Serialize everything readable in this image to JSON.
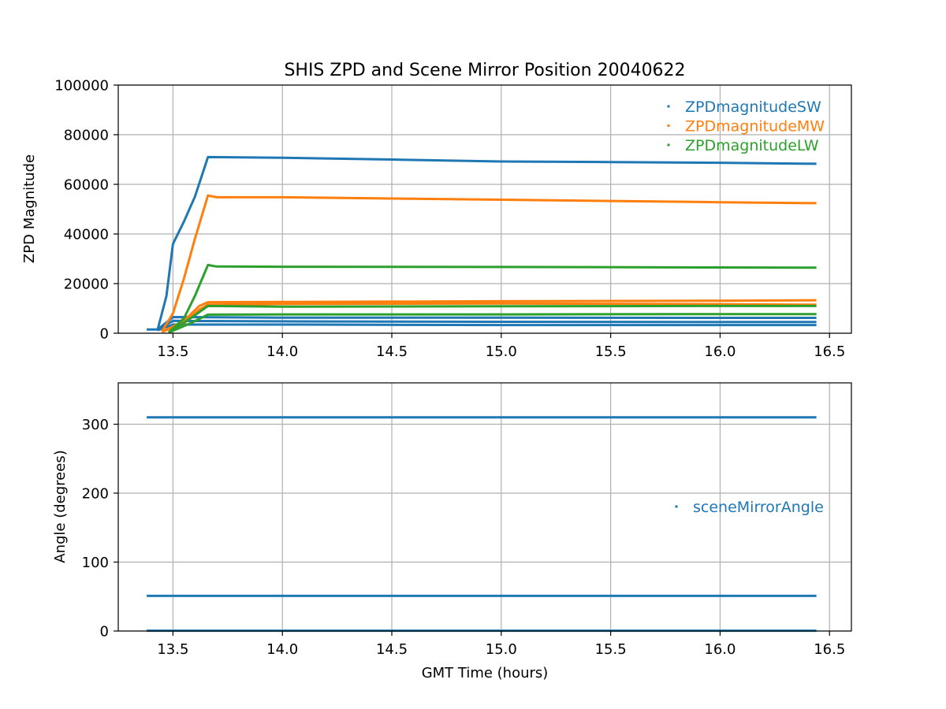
{
  "chart_data": [
    {
      "type": "scatter",
      "title": "SHIS ZPD and Scene Mirror Position 20040622",
      "xlabel": "",
      "ylabel": "ZPD Magnitude",
      "xlim": [
        13.25,
        16.6
      ],
      "ylim": [
        0,
        100000
      ],
      "xticks": [
        "13.5",
        "14.0",
        "14.5",
        "15.0",
        "15.5",
        "16.0",
        "16.5"
      ],
      "yticks": [
        "0",
        "20000",
        "40000",
        "60000",
        "80000",
        "100000"
      ],
      "grid": true,
      "legend_position": "top-right",
      "series": [
        {
          "name": "ZPDmagnitudeSW",
          "color": "#1f77b4",
          "traces": [
            [
              [
                13.38,
                1500
              ],
              [
                13.43,
                1500
              ],
              [
                13.47,
                15000
              ],
              [
                13.5,
                36000
              ],
              [
                13.55,
                45000
              ],
              [
                13.6,
                55000
              ],
              [
                13.66,
                71000
              ],
              [
                14.0,
                70700
              ],
              [
                14.5,
                70000
              ],
              [
                15.0,
                69200
              ],
              [
                15.5,
                69000
              ],
              [
                16.0,
                68700
              ],
              [
                16.44,
                68300
              ]
            ],
            [
              [
                13.43,
                1500
              ],
              [
                13.5,
                6500
              ],
              [
                14.0,
                6300
              ],
              [
                15.0,
                6300
              ],
              [
                16.0,
                6200
              ],
              [
                16.44,
                6200
              ]
            ],
            [
              [
                13.43,
                1500
              ],
              [
                13.5,
                5000
              ],
              [
                14.0,
                4800
              ],
              [
                15.0,
                4600
              ],
              [
                16.0,
                4500
              ],
              [
                16.44,
                4500
              ]
            ],
            [
              [
                13.43,
                1200
              ],
              [
                13.5,
                3500
              ],
              [
                14.0,
                3500
              ],
              [
                15.0,
                3300
              ],
              [
                16.0,
                3300
              ],
              [
                16.44,
                3300
              ]
            ]
          ]
        },
        {
          "name": "ZPDmagnitudeMW",
          "color": "#ff7f0e",
          "traces": [
            [
              [
                13.45,
                800
              ],
              [
                13.5,
                8000
              ],
              [
                13.55,
                22000
              ],
              [
                13.6,
                38000
              ],
              [
                13.66,
                55500
              ],
              [
                13.7,
                54800
              ],
              [
                14.0,
                54800
              ],
              [
                14.5,
                54300
              ],
              [
                15.0,
                53800
              ],
              [
                15.5,
                53300
              ],
              [
                16.0,
                52800
              ],
              [
                16.44,
                52400
              ]
            ],
            [
              [
                13.45,
                500
              ],
              [
                13.55,
                5000
              ],
              [
                13.62,
                11000
              ],
              [
                13.66,
                12500
              ],
              [
                14.0,
                12600
              ],
              [
                15.0,
                12900
              ],
              [
                16.0,
                13100
              ],
              [
                16.44,
                13300
              ]
            ],
            [
              [
                13.45,
                500
              ],
              [
                13.55,
                4000
              ],
              [
                13.62,
                9500
              ],
              [
                13.66,
                11500
              ],
              [
                14.0,
                11800
              ],
              [
                15.0,
                12000
              ],
              [
                16.0,
                11700
              ],
              [
                16.44,
                11500
              ]
            ]
          ]
        },
        {
          "name": "ZPDmagnitudeLW",
          "color": "#2ca02c",
          "traces": [
            [
              [
                13.48,
                300
              ],
              [
                13.55,
                6000
              ],
              [
                13.6,
                15000
              ],
              [
                13.66,
                27500
              ],
              [
                13.7,
                26900
              ],
              [
                14.0,
                26800
              ],
              [
                15.0,
                26700
              ],
              [
                16.0,
                26500
              ],
              [
                16.44,
                26400
              ]
            ],
            [
              [
                13.48,
                300
              ],
              [
                13.58,
                6000
              ],
              [
                13.66,
                11000
              ],
              [
                14.0,
                10700
              ],
              [
                15.0,
                10900
              ],
              [
                16.0,
                11000
              ],
              [
                16.44,
                11000
              ]
            ],
            [
              [
                13.48,
                300
              ],
              [
                13.58,
                4000
              ],
              [
                13.66,
                7500
              ],
              [
                14.0,
                7600
              ],
              [
                15.0,
                7600
              ],
              [
                16.0,
                7700
              ],
              [
                16.44,
                7700
              ]
            ]
          ]
        }
      ]
    },
    {
      "type": "scatter",
      "title": "",
      "xlabel": "GMT Time (hours)",
      "ylabel": "Angle (degrees)",
      "xlim": [
        13.25,
        16.6
      ],
      "ylim": [
        0,
        360
      ],
      "xticks": [
        "13.5",
        "14.0",
        "14.5",
        "15.0",
        "15.5",
        "16.0",
        "16.5"
      ],
      "yticks": [
        "0",
        "100",
        "200",
        "300"
      ],
      "grid": true,
      "legend_position": "center-right",
      "series": [
        {
          "name": "sceneMirrorAngle",
          "color": "#1f77b4",
          "traces": [
            [
              [
                13.38,
                310
              ],
              [
                16.44,
                310
              ]
            ],
            [
              [
                13.38,
                51
              ],
              [
                16.44,
                51
              ]
            ],
            [
              [
                13.38,
                0.5
              ],
              [
                16.44,
                0.5
              ]
            ]
          ]
        }
      ]
    }
  ]
}
